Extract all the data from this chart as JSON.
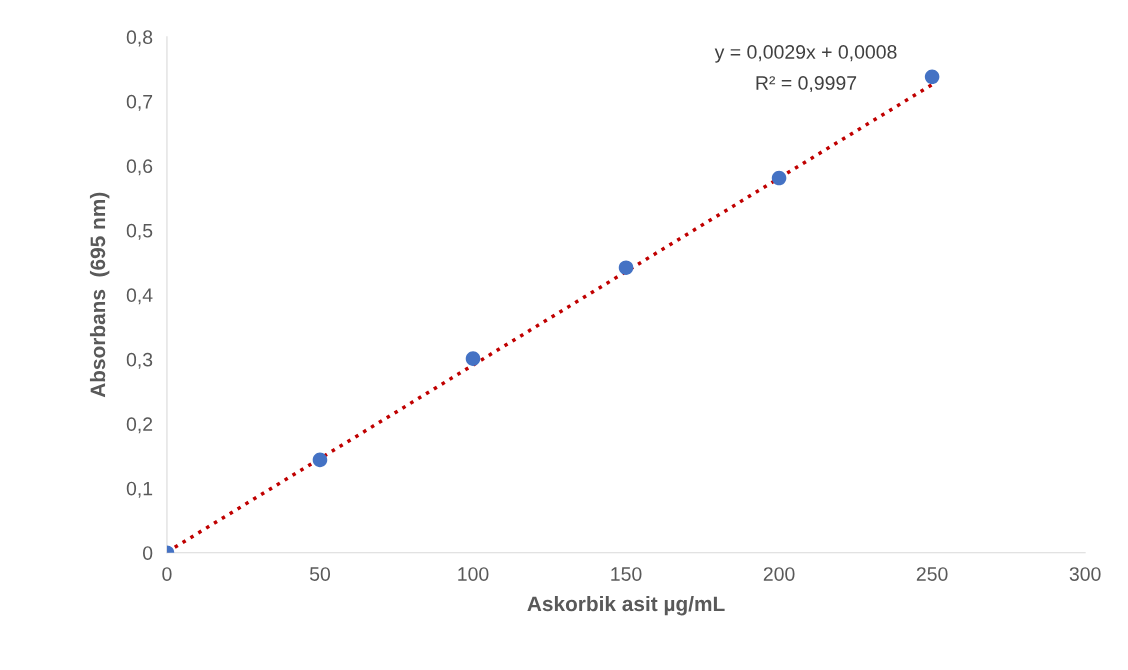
{
  "chart_data": {
    "type": "scatter",
    "xlabel": "Askorbik asit µg/mL",
    "ylabel": "Absorbans  (695 nm)",
    "x": [
      0,
      50,
      100,
      150,
      200,
      250
    ],
    "series": [
      {
        "color": "#4472c4",
        "marker": "circle",
        "values": [
          0,
          0.144,
          0.301,
          0.442,
          0.581,
          0.738
        ]
      },
      {
        "type": "line",
        "color": "#c00000",
        "line_style": "dotted",
        "marker": "none",
        "x": [
          0,
          250
        ],
        "values": [
          0.001,
          0.726
        ]
      }
    ],
    "xlim": [
      0,
      300
    ],
    "xticks": [
      0,
      50,
      100,
      150,
      200,
      250,
      300
    ],
    "ylim": [
      0,
      0.8
    ],
    "yticks": [
      0,
      {
        "value": 0.1,
        "label": "0,1"
      },
      {
        "value": 0.2,
        "label": "0,2"
      },
      {
        "value": 0.3,
        "label": "0,3"
      },
      {
        "value": 0.4,
        "label": "0,4"
      },
      {
        "value": 0.5,
        "label": "0,5"
      },
      {
        "value": 0.6,
        "label": "0,6"
      },
      {
        "value": 0.7,
        "label": "0,7"
      },
      {
        "value": 0.8,
        "label": "0,8"
      }
    ],
    "grid": false,
    "annotations": [
      "y = 0,0029x + 0,0008",
      "R² = 0,9997"
    ]
  }
}
